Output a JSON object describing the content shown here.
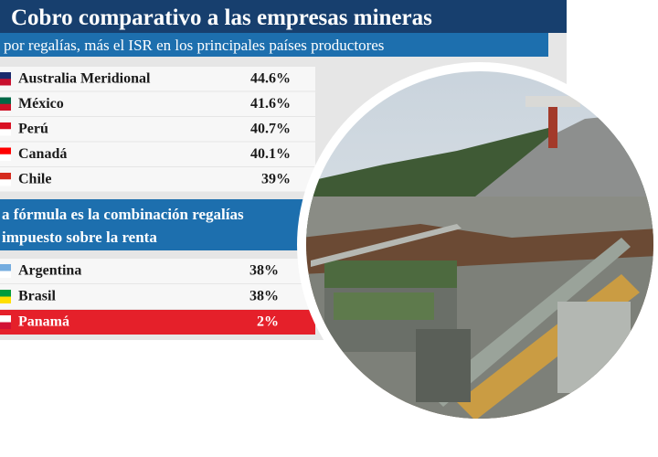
{
  "header": {
    "title": "Cobro comparativo a las empresas mineras",
    "subtitle": "por regalías, más el ISR en los principales países productores"
  },
  "table1": {
    "rows": [
      [
        "Australia Meridional",
        "44.6%"
      ],
      [
        "México",
        "41.6%"
      ],
      [
        "Perú",
        "40.7%"
      ],
      [
        "Canadá",
        "40.1%"
      ],
      [
        "Chile",
        "39%"
      ]
    ]
  },
  "section": {
    "lines": [
      "a fórmula es la combinación regalías",
      "impuesto sobre la renta"
    ]
  },
  "table2": {
    "rows": [
      [
        "Argentina",
        "38%"
      ],
      [
        "Brasil",
        "38%"
      ],
      [
        "Panamá",
        "2%"
      ]
    ]
  }
}
